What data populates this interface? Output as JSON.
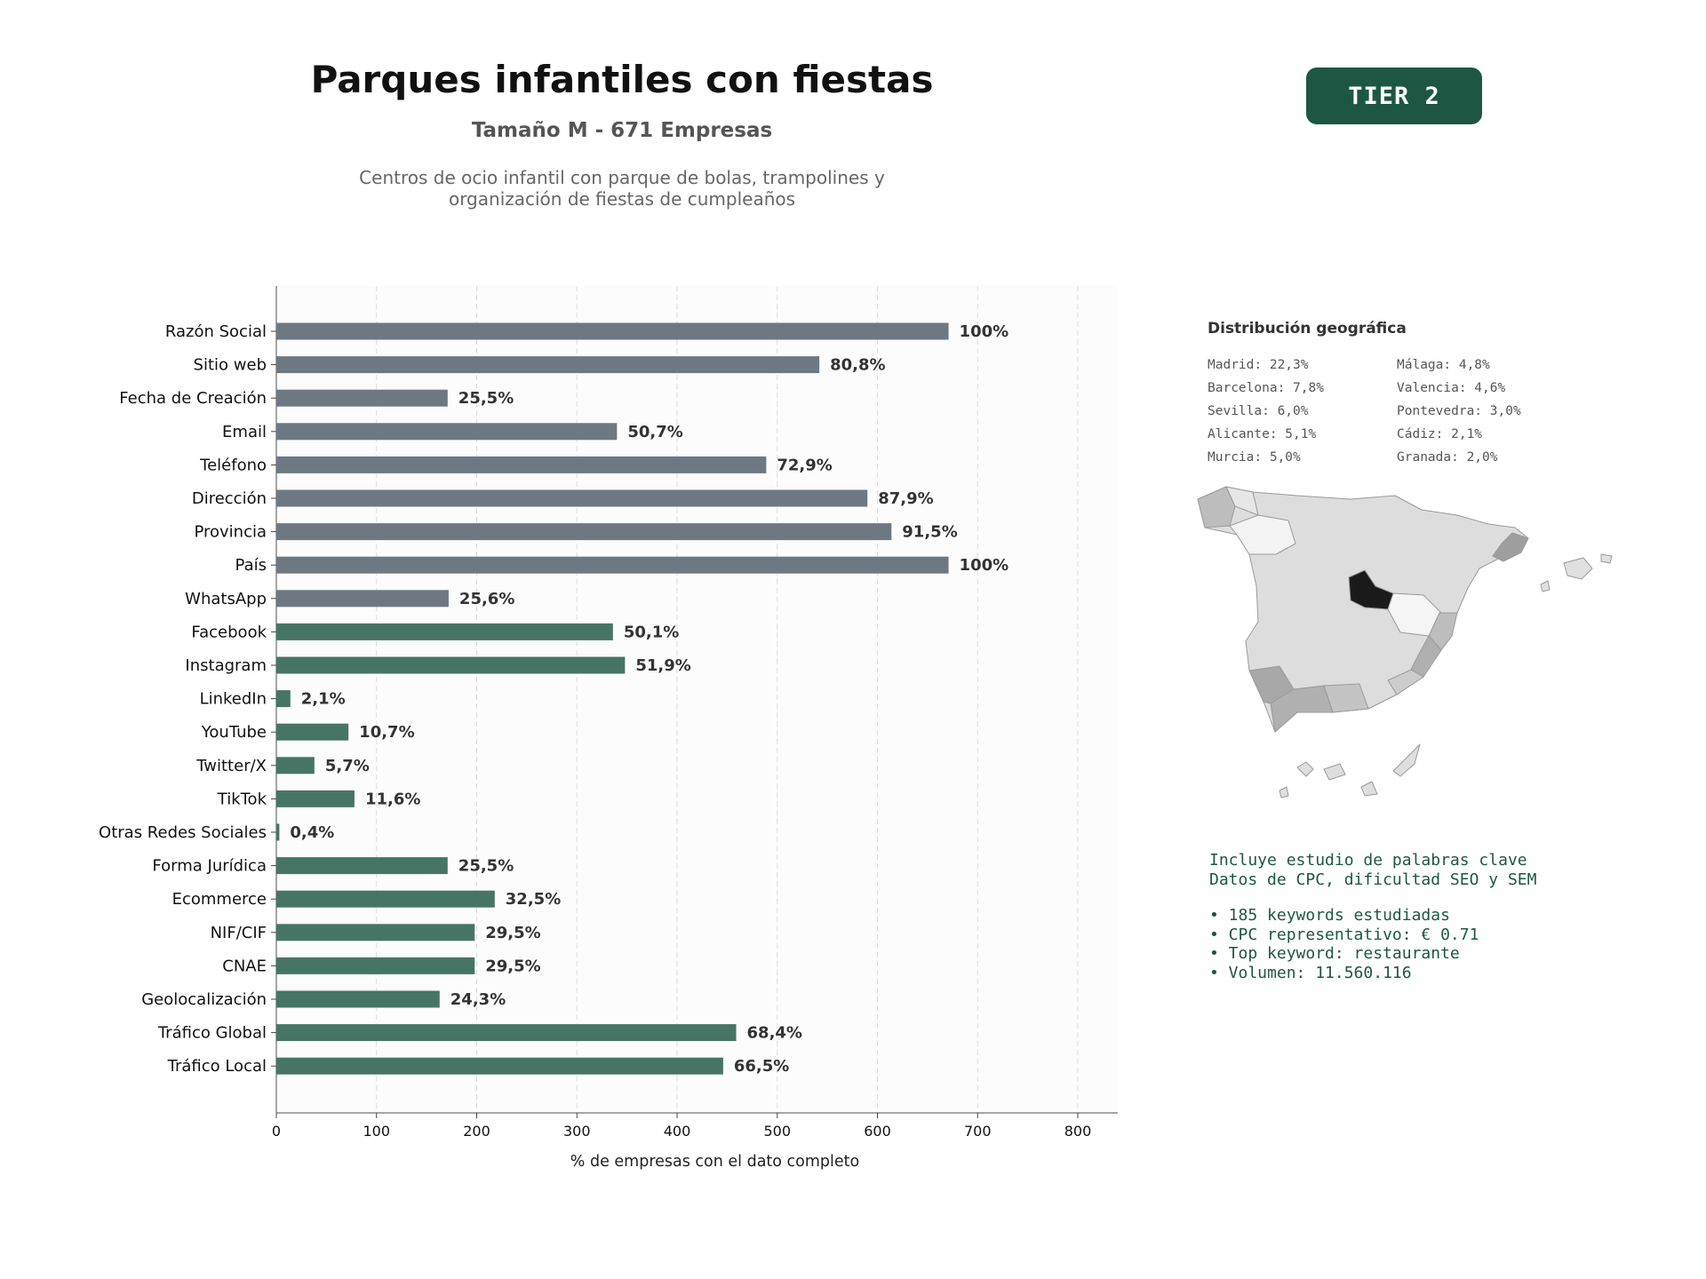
{
  "header": {
    "title": "Parques infantiles con fiestas",
    "subtitle": "Tamaño M - 671 Empresas",
    "description_line1": "Centros de ocio infantil con parque de bolas, trampolines y",
    "description_line2": "organización de fiestas de cumpleaños",
    "tier": "TIER 2"
  },
  "chart_data": {
    "type": "bar",
    "orientation": "horizontal",
    "xlabel": "% de empresas con el dato completo",
    "xlim": [
      0,
      840
    ],
    "xticks": [
      0,
      100,
      200,
      300,
      400,
      500,
      600,
      700,
      800
    ],
    "grid": "vertical dashed",
    "categories": [
      "Razón Social",
      "Sitio web",
      "Fecha de Creación",
      "Email",
      "Teléfono",
      "Dirección",
      "Provincia",
      "País",
      "WhatsApp",
      "Facebook",
      "Instagram",
      "LinkedIn",
      "YouTube",
      "Twitter/X",
      "TikTok",
      "Otras Redes Sociales",
      "Forma Jurídica",
      "Ecommerce",
      "NIF/CIF",
      "CNAE",
      "Geolocalización",
      "Tráfico Global",
      "Tráfico Local"
    ],
    "values": [
      671,
      542,
      171,
      340,
      489,
      590,
      614,
      671,
      172,
      336,
      348,
      14,
      72,
      38,
      78,
      3,
      171,
      218,
      198,
      198,
      163,
      459,
      446
    ],
    "labels": [
      "100%",
      "80,8%",
      "25,5%",
      "50,7%",
      "72,9%",
      "87,9%",
      "91,5%",
      "100%",
      "25,6%",
      "50,1%",
      "51,9%",
      "2,1%",
      "10,7%",
      "5,7%",
      "11,6%",
      "0,4%",
      "25,5%",
      "32,5%",
      "29,5%",
      "29,5%",
      "24,3%",
      "68,4%",
      "66,5%"
    ],
    "groups": [
      "grey",
      "grey",
      "grey",
      "grey",
      "grey",
      "grey",
      "grey",
      "grey",
      "grey",
      "green",
      "green",
      "green",
      "green",
      "green",
      "green",
      "green",
      "green",
      "green",
      "green",
      "green",
      "green",
      "green",
      "green"
    ],
    "colors": {
      "grey": "#6e7882",
      "green": "#477565"
    }
  },
  "geo": {
    "title": "Distribución geográfica",
    "col1": [
      "Madrid: 22,3%",
      "Barcelona: 7,8%",
      "Sevilla: 6,0%",
      "Alicante: 5,1%",
      "Murcia: 5,0%"
    ],
    "col2": [
      "Málaga: 4,8%",
      "Valencia: 4,6%",
      "Pontevedra: 3,0%",
      "Cádiz: 2,1%",
      "Granada: 2,0%"
    ]
  },
  "keywords": {
    "line1": "Incluye estudio de palabras clave",
    "line2": "Datos de CPC, dificultad SEO y SEM",
    "items": [
      "• 185 keywords estudiadas",
      "• CPC representativo: € 0.71",
      "• Top keyword: restaurante",
      "• Volumen: 11.560.116"
    ]
  }
}
